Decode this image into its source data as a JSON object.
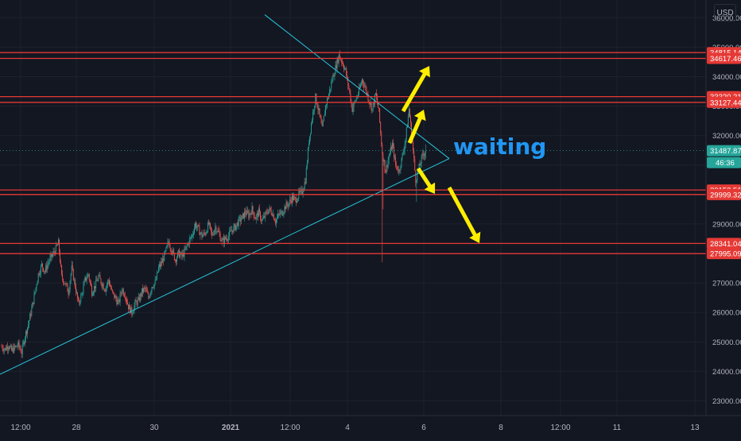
{
  "chart_data": {
    "type": "candlestick",
    "currency": "USD",
    "y_axis": {
      "min": 22500,
      "max": 36600,
      "ticks": [
        "23000.00",
        "24000.00",
        "25000.00",
        "26000.00",
        "27000.00",
        "28000.00",
        "29000.00",
        "30000.00",
        "31000.00",
        "32000.00",
        "33000.00",
        "34000.00",
        "35000.00",
        "36000.00"
      ]
    },
    "x_axis": {
      "ticks": [
        "12:00",
        "28",
        "30",
        "2021",
        "12:00",
        "4",
        "6",
        "8",
        "12:00",
        "11",
        "13"
      ]
    },
    "horizontal_levels": [
      {
        "value": 34815.14,
        "label": "34815.14"
      },
      {
        "value": 34617.46,
        "label": "34617.46"
      },
      {
        "value": 33320.21,
        "label": "33320.21"
      },
      {
        "value": 33127.44,
        "label": "33127.44"
      },
      {
        "value": 30153.51,
        "label": "30153.51"
      },
      {
        "value": 29999.32,
        "label": "29999.32"
      },
      {
        "value": 28341.04,
        "label": "28341.04"
      },
      {
        "value": 27995.09,
        "label": "27995.09"
      }
    ],
    "current_price": {
      "value": 31487.87,
      "label": "31487.87",
      "countdown": "46:36"
    },
    "annotation": "waiting",
    "colors": {
      "background": "#131722",
      "up": "#26a69a",
      "down": "#ef5350",
      "level": "#e53935",
      "trendline": "#26c6da",
      "arrow": "#ffee00",
      "annotation": "#2196f3"
    },
    "candle_anchors": [
      [
        0,
        24850
      ],
      [
        4,
        24750
      ],
      [
        8,
        24900
      ],
      [
        12,
        24700
      ],
      [
        16,
        24800
      ],
      [
        20,
        24900
      ],
      [
        24,
        24650
      ],
      [
        28,
        25200
      ],
      [
        32,
        25600
      ],
      [
        36,
        26100
      ],
      [
        40,
        26700
      ],
      [
        44,
        27300
      ],
      [
        48,
        27600
      ],
      [
        52,
        27400
      ],
      [
        56,
        27700
      ],
      [
        60,
        27900
      ],
      [
        64,
        28100
      ],
      [
        68,
        28350
      ],
      [
        72,
        27200
      ],
      [
        76,
        27000
      ],
      [
        80,
        26700
      ],
      [
        84,
        27500
      ],
      [
        88,
        26900
      ],
      [
        92,
        26300
      ],
      [
        96,
        26600
      ],
      [
        100,
        27100
      ],
      [
        104,
        27300
      ],
      [
        108,
        26700
      ],
      [
        112,
        26900
      ],
      [
        116,
        27200
      ],
      [
        120,
        27000
      ],
      [
        124,
        26800
      ],
      [
        128,
        27100
      ],
      [
        132,
        26700
      ],
      [
        136,
        26500
      ],
      [
        140,
        26300
      ],
      [
        144,
        26800
      ],
      [
        148,
        26600
      ],
      [
        152,
        26200
      ],
      [
        156,
        26000
      ],
      [
        160,
        26300
      ],
      [
        164,
        26400
      ],
      [
        168,
        26700
      ],
      [
        172,
        26800
      ],
      [
        176,
        26500
      ],
      [
        180,
        26900
      ],
      [
        184,
        27000
      ],
      [
        188,
        27500
      ],
      [
        192,
        27700
      ],
      [
        196,
        28000
      ],
      [
        200,
        28400
      ],
      [
        204,
        28100
      ],
      [
        208,
        27800
      ],
      [
        212,
        28000
      ],
      [
        216,
        27900
      ],
      [
        220,
        28100
      ],
      [
        224,
        28400
      ],
      [
        228,
        28600
      ],
      [
        232,
        29000
      ],
      [
        236,
        28800
      ],
      [
        240,
        28600
      ],
      [
        244,
        28700
      ],
      [
        248,
        29000
      ],
      [
        252,
        28600
      ],
      [
        256,
        28900
      ],
      [
        260,
        28700
      ],
      [
        264,
        28400
      ],
      [
        268,
        28500
      ],
      [
        272,
        28600
      ],
      [
        276,
        28800
      ],
      [
        280,
        28900
      ],
      [
        284,
        29100
      ],
      [
        288,
        29200
      ],
      [
        292,
        29400
      ],
      [
        296,
        29300
      ],
      [
        300,
        29500
      ],
      [
        304,
        29200
      ],
      [
        308,
        29400
      ],
      [
        312,
        29100
      ],
      [
        316,
        29300
      ],
      [
        320,
        29500
      ],
      [
        324,
        29400
      ],
      [
        328,
        29100
      ],
      [
        332,
        29300
      ],
      [
        336,
        29400
      ],
      [
        340,
        29600
      ],
      [
        344,
        29700
      ],
      [
        348,
        29900
      ],
      [
        352,
        29800
      ],
      [
        356,
        30000
      ],
      [
        360,
        30100
      ],
      [
        364,
        30500
      ],
      [
        368,
        31800
      ],
      [
        372,
        32600
      ],
      [
        376,
        33300
      ],
      [
        380,
        32800
      ],
      [
        384,
        32200
      ],
      [
        388,
        33000
      ],
      [
        392,
        33400
      ],
      [
        396,
        33900
      ],
      [
        400,
        34300
      ],
      [
        404,
        34700
      ],
      [
        408,
        34500
      ],
      [
        412,
        34200
      ],
      [
        416,
        33600
      ],
      [
        420,
        32900
      ],
      [
        424,
        33200
      ],
      [
        428,
        33500
      ],
      [
        432,
        33900
      ],
      [
        436,
        33600
      ],
      [
        440,
        33200
      ],
      [
        444,
        32900
      ],
      [
        448,
        33400
      ],
      [
        452,
        32800
      ],
      [
        456,
        31400
      ],
      [
        460,
        30800
      ],
      [
        464,
        31300
      ],
      [
        468,
        31700
      ],
      [
        472,
        31000
      ],
      [
        476,
        30800
      ],
      [
        480,
        31300
      ],
      [
        484,
        31900
      ],
      [
        488,
        32900
      ],
      [
        492,
        31800
      ],
      [
        496,
        30500
      ],
      [
        500,
        30900
      ],
      [
        504,
        31300
      ],
      [
        508,
        31500
      ]
    ]
  }
}
